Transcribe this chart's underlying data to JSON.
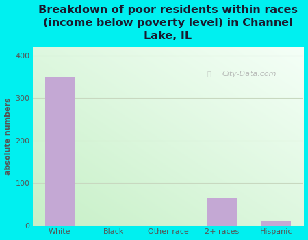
{
  "categories": [
    "White",
    "Black",
    "Other race",
    "2+ races",
    "Hispanic"
  ],
  "values": [
    350,
    0,
    0,
    65,
    10
  ],
  "bar_color": "#c4a8d4",
  "title": "Breakdown of poor residents within races\n(income below poverty level) in Channel\nLake, IL",
  "ylabel": "absolute numbers",
  "ylim": [
    0,
    420
  ],
  "yticks": [
    0,
    100,
    200,
    300,
    400
  ],
  "bg_color": "#00f0f0",
  "plot_bg_tl": "#c8e8c8",
  "plot_bg_tr": "#f0f8f8",
  "plot_bg_bl": "#ddf0dd",
  "plot_bg_br": "#f8fff8",
  "watermark": "City-Data.com",
  "title_color": "#1a1a2e",
  "axis_label_color": "#555555",
  "tick_label_color": "#555555",
  "grid_color": "#c8d8c0",
  "title_fontsize": 11.5
}
